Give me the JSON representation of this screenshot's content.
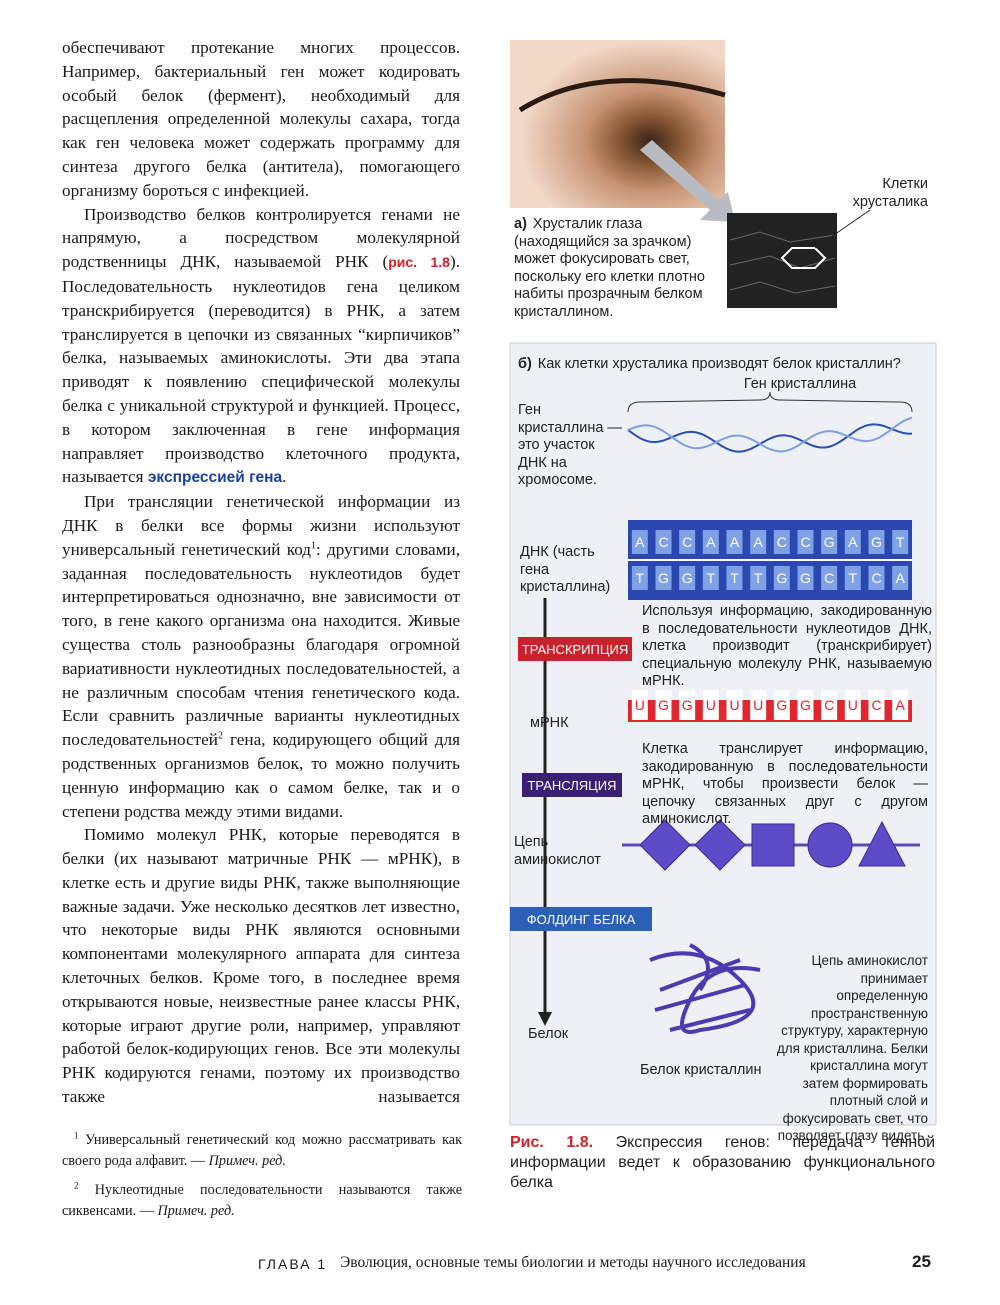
{
  "body": {
    "p1": "обеспечивают протекание многих процессов. Например, бактериальный ген может кодировать особый белок (фермент), необходимый для расщепления определенной молекулы сахара, тогда как ген человека может содержать программу для синтеза другого белка (антитела), помогающего организму бороться с инфекцией.",
    "p2": {
      "text_a": "Производство белков контролируется генами не напрямую, а посредством молекулярной родственницы ДНК, называемой РНК (",
      "figure_ref": "рис. 1.8",
      "text_b": "). Последовательность нуклеотидов гена целиком транскрибируется (переводится) в РНК, а затем транслируется в цепочки из связанных “кирпичиков” белка, называемых аминокислоты. Эти два этапа приводят к появлению специфической молекулы белка с уникальной структурой и функцией. Процесс, в котором заключенная в гене информация направляет производство клеточного продукта, называется ",
      "term": "экспрессией гена",
      "text_c": "."
    },
    "p3": {
      "text_a": "При трансляции генетической информации из ДНК в белки все формы жизни используют универсальный генетический код",
      "note_1": "1",
      "text_b": ": другими словами, заданная последовательность нуклеотидов будет интерпретироваться однозначно, вне зависимости от того, в гене какого организма она находится. Живые существа столь разнообразны благодаря огромной вариативности нуклеотидных последовательностей, а не различным способам чтения генетического кода. Если сравнить различные варианты нуклеотидных последовательностей",
      "note_2": "2",
      "text_c": " гена, кодирующего общий для родственных организмов белок, то можно получить ценную информацию как о самом белке, так и о степени родства между этими видами."
    },
    "p4": "Помимо молекул РНК, которые переводятся в белки (их называют матричные РНК — мРНК), в клетке есть и другие виды РНК, также выполняющие важные задачи. Уже несколько десятков лет известно, что некоторые виды РНК являются основными компонентами молекулярного аппарата для синтеза клеточных белков. Кроме того, в последнее время открываются новые, неизвестные ранее классы РНК, которые играют другие роли, например, управляют работой белок-кодирующих генов. Все эти молекулы РНК кодируются генами, поэтому их производство также называется"
  },
  "footnotes": [
    {
      "mark": "1",
      "text": "Универсальный генетический код можно рассматривать как своего рода алфавит. — ",
      "note": "Примеч. ред."
    },
    {
      "mark": "2",
      "text": "Нуклеотидные последовательности называются также сиквенсами. — ",
      "note": "Примеч. ред."
    }
  ],
  "footer": {
    "chapter": "ГЛАВА 1",
    "title": "Эволюция, основные темы биологии и методы научного исследования",
    "page": "25"
  },
  "figure": {
    "cells_label": "Клетки хрусталика",
    "part_a": {
      "letter": "а)",
      "text": "Хрусталик глаза (находящийся за зрачком) может фокусировать свет, поскольку его клетки плотно набиты прозрачным белком кристаллином."
    },
    "part_b": {
      "letter": "б)",
      "question": "Как клетки хрусталика производят белок кристаллин?"
    },
    "gene_label": "Ген кристаллина",
    "gene_note": "Ген кристаллина — это участок ДНК на хромосоме.",
    "dna_label": "ДНК (часть гена кристаллина)",
    "dna_top": [
      "A",
      "C",
      "C",
      "A",
      "A",
      "A",
      "C",
      "C",
      "G",
      "A",
      "G",
      "T"
    ],
    "dna_bottom": [
      "T",
      "G",
      "G",
      "T",
      "T",
      "T",
      "G",
      "G",
      "C",
      "T",
      "C",
      "A"
    ],
    "transcription": "ТРАНСКРИПЦИЯ",
    "transcription_note": "Используя информацию, закодированную в последовательности нуклеотидов ДНК, клетка производит (транскрибирует) специальную молекулу РНК, называемую мРНК.",
    "mrna_label": "мРНК",
    "mrna": [
      "U",
      "G",
      "G",
      "U",
      "U",
      "U",
      "G",
      "G",
      "C",
      "U",
      "C",
      "A"
    ],
    "translation": "ТРАНСЛЯЦИЯ",
    "translation_note": "Клетка транслирует информацию, закодированную в последовательности мРНК, чтобы произвести белок — цепочку связанных друг с другом аминокислот.",
    "chain_label": "Цепь аминокислот",
    "folding": "ФОЛДИНГ БЕЛКА",
    "protein_label": "Белок",
    "protein_name": "Белок кристаллин",
    "folding_note": "Цепь аминокислот принимает определенную пространственную структуру, характерную для кристаллина. Белки кристаллина могут затем формировать плотный слой и фокусировать свет, что позволяет глазу видеть.",
    "caption_label": "Рис. 1.8.",
    "caption": "Экспрессия генов: передача генной информации ведет к образованию функционального белка"
  }
}
